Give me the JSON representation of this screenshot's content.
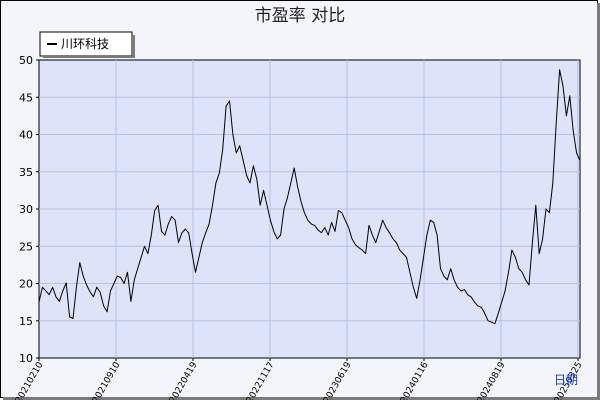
{
  "chart_data": {
    "type": "line",
    "title": "市盈率  对比",
    "xlabel": "日期",
    "ylabel": "",
    "ylim": [
      10,
      50
    ],
    "yticks": [
      10,
      15,
      20,
      25,
      30,
      35,
      40,
      45,
      50
    ],
    "xtick_labels": [
      "20210210",
      "20210910",
      "20220419",
      "20221117",
      "20230619",
      "20240116",
      "20240819",
      "20250325"
    ],
    "grid": true,
    "legend_position": "top-left",
    "series": [
      {
        "name": "川环科技",
        "color": "#000000",
        "values": [
          17.5,
          19.5,
          19.0,
          18.5,
          19.5,
          18.2,
          17.6,
          19.0,
          20.1,
          15.5,
          15.3,
          19.5,
          22.8,
          21.0,
          19.8,
          18.9,
          18.2,
          19.5,
          18.8,
          17.0,
          16.2,
          19.0,
          20.0,
          21.0,
          20.8,
          20.0,
          21.5,
          17.6,
          20.5,
          22.0,
          23.5,
          25.0,
          24.0,
          26.5,
          29.8,
          30.5,
          27.0,
          26.5,
          28.0,
          29.0,
          28.5,
          25.5,
          26.8,
          27.3,
          26.8,
          24.0,
          21.5,
          23.5,
          25.5,
          26.8,
          28.0,
          30.5,
          33.5,
          34.8,
          38.0,
          43.8,
          44.5,
          40.0,
          37.5,
          38.5,
          36.5,
          34.5,
          33.5,
          35.8,
          34.0,
          30.5,
          32.5,
          30.5,
          28.5,
          27.0,
          26.0,
          26.5,
          30.0,
          31.5,
          33.5,
          35.5,
          33.0,
          31.0,
          29.5,
          28.5,
          28.0,
          27.8,
          27.2,
          26.8,
          27.5,
          26.5,
          28.2,
          27.0,
          29.8,
          29.5,
          28.5,
          27.5,
          26.0,
          25.2,
          24.8,
          24.5,
          24.0,
          27.8,
          26.5,
          25.5,
          27.0,
          28.5,
          27.5,
          26.8,
          26.0,
          25.5,
          24.5,
          24.0,
          23.5,
          21.5,
          19.5,
          18.0,
          20.5,
          23.5,
          26.5,
          28.5,
          28.2,
          26.5,
          22.0,
          21.0,
          20.5,
          22.0,
          20.5,
          19.5,
          19.0,
          19.2,
          18.5,
          18.2,
          17.5,
          17.0,
          16.8,
          16.0,
          15.0,
          14.8,
          14.6,
          16.0,
          17.5,
          19.0,
          21.5,
          24.5,
          23.5,
          22.0,
          21.5,
          20.5,
          19.8,
          25.5,
          30.5,
          24.0,
          26.0,
          30.0,
          29.5,
          33.5,
          41.5,
          48.7,
          46.5,
          42.5,
          45.2,
          40.5,
          37.5,
          36.5
        ]
      }
    ]
  }
}
